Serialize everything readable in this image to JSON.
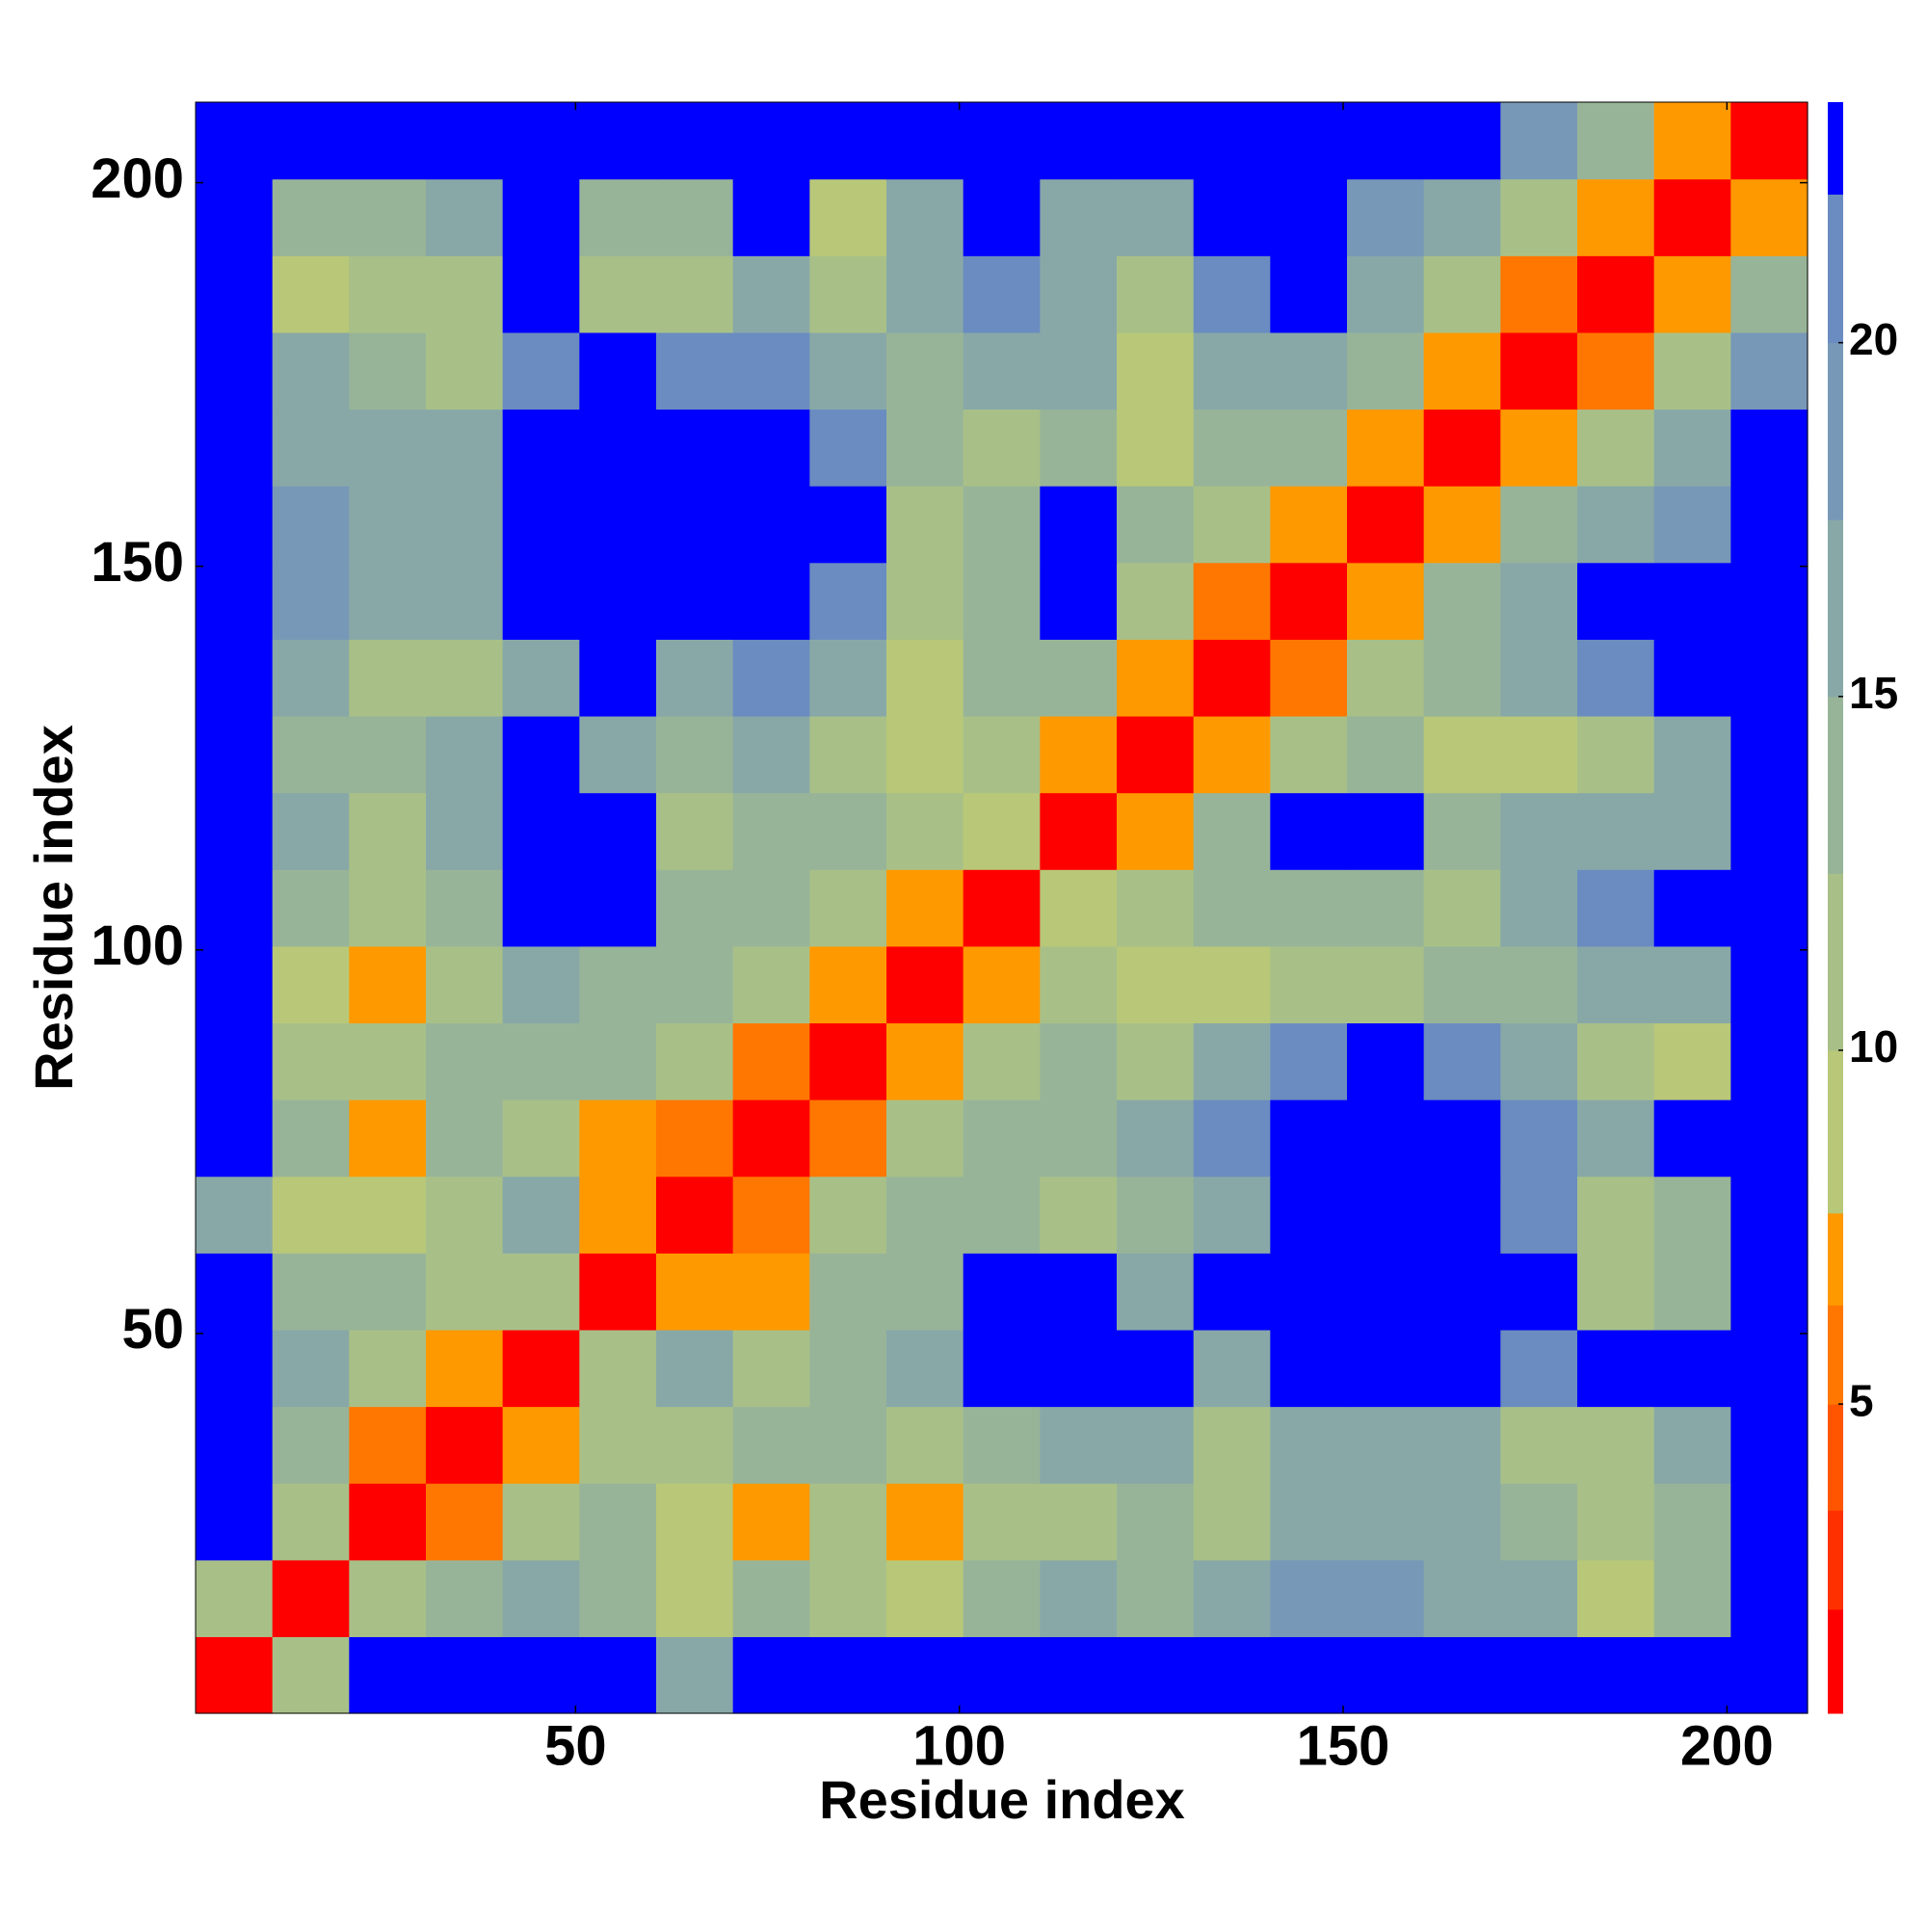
{
  "chart_data": {
    "type": "heatmap",
    "x_label": "Residue index",
    "y_label": "Residue index",
    "xlim": [
      0.5,
      210.5
    ],
    "ylim": [
      0.5,
      210.5
    ],
    "xticks": [
      50,
      100,
      150,
      200
    ],
    "yticks": [
      50,
      100,
      150,
      200
    ],
    "xbins": [
      0.5,
      10.5,
      20.5,
      30.5,
      40.5,
      50.5,
      60.5,
      70.5,
      80.5,
      90.5,
      100.5,
      110.5,
      120.5,
      130.5,
      140.5,
      150.5,
      160.5,
      170.5,
      180.5,
      190.5,
      200.5,
      210.5
    ],
    "ybins": [
      0.5,
      10.5,
      20.5,
      30.5,
      40.5,
      50.5,
      60.5,
      70.5,
      80.5,
      90.5,
      100.5,
      110.5,
      120.5,
      130.5,
      140.5,
      150.5,
      160.5,
      170.5,
      180.5,
      190.5,
      200.5,
      210.5
    ],
    "z": [
      [
        2,
        12,
        23,
        23,
        23,
        23,
        15,
        23,
        23,
        23,
        23,
        23,
        23,
        23,
        23,
        23,
        23,
        23,
        23,
        23,
        23
      ],
      [
        12,
        2,
        10,
        14,
        15,
        14,
        8,
        14,
        12,
        9,
        14,
        15,
        14,
        15,
        18,
        18,
        16,
        15,
        8,
        14,
        23
      ],
      [
        23,
        10,
        2,
        6,
        12,
        13,
        8,
        7,
        11,
        7,
        10,
        12,
        13,
        12,
        16,
        16,
        15,
        14,
        11,
        14,
        23
      ],
      [
        23,
        14,
        6,
        2,
        7,
        10,
        12,
        14,
        14,
        12,
        14,
        16,
        16,
        10,
        16,
        17,
        15,
        10,
        12,
        17,
        23
      ],
      [
        23,
        15,
        12,
        7,
        2,
        10,
        16,
        12,
        13,
        15,
        23,
        23,
        23,
        17,
        23,
        23,
        23,
        20,
        23,
        23,
        23
      ],
      [
        23,
        14,
        13,
        10,
        10,
        2,
        7,
        7,
        13,
        14,
        23,
        23,
        16,
        23,
        23,
        23,
        23,
        23,
        12,
        14,
        23
      ],
      [
        15,
        8,
        8,
        12,
        16,
        7,
        2,
        5,
        12,
        14,
        14,
        12,
        13,
        16,
        23,
        23,
        23,
        20,
        10,
        14,
        23
      ],
      [
        23,
        14,
        7,
        14,
        12,
        7,
        5,
        2,
        6,
        12,
        13,
        14,
        15,
        20,
        23,
        23,
        23,
        20,
        16,
        23,
        23
      ],
      [
        23,
        12,
        11,
        14,
        13,
        13,
        12,
        6,
        2,
        7,
        12,
        13,
        11,
        16,
        20,
        23,
        20,
        15,
        10,
        8,
        23
      ],
      [
        23,
        9,
        7,
        12,
        15,
        14,
        14,
        12,
        7,
        2,
        7,
        11,
        8,
        9,
        11,
        12,
        14,
        13,
        15,
        16,
        23
      ],
      [
        23,
        14,
        10,
        14,
        23,
        23,
        14,
        13,
        12,
        7,
        2,
        8,
        12,
        14,
        13,
        14,
        10,
        16,
        20,
        23,
        23
      ],
      [
        23,
        15,
        12,
        16,
        23,
        23,
        12,
        14,
        13,
        11,
        8,
        2,
        7,
        13,
        23,
        23,
        14,
        15,
        16,
        15,
        23
      ],
      [
        23,
        14,
        13,
        16,
        23,
        16,
        13,
        15,
        11,
        8,
        12,
        7,
        2,
        7,
        12,
        14,
        9,
        8,
        12,
        16,
        23
      ],
      [
        23,
        15,
        12,
        10,
        17,
        23,
        16,
        20,
        16,
        9,
        14,
        13,
        7,
        2,
        6,
        12,
        14,
        15,
        20,
        23,
        23
      ],
      [
        23,
        18,
        16,
        16,
        23,
        23,
        23,
        23,
        20,
        11,
        13,
        23,
        12,
        6,
        2,
        7,
        14,
        16,
        23,
        23,
        23
      ],
      [
        23,
        18,
        16,
        17,
        23,
        23,
        23,
        23,
        23,
        12,
        14,
        23,
        14,
        12,
        7,
        2,
        7,
        13,
        16,
        18,
        23
      ],
      [
        23,
        16,
        15,
        15,
        23,
        23,
        23,
        23,
        20,
        14,
        10,
        14,
        9,
        14,
        14,
        7,
        2,
        7,
        11,
        16,
        23
      ],
      [
        23,
        15,
        14,
        10,
        20,
        23,
        20,
        20,
        15,
        13,
        16,
        15,
        8,
        15,
        16,
        13,
        7,
        2,
        6,
        12,
        18
      ],
      [
        23,
        8,
        11,
        12,
        23,
        12,
        10,
        16,
        10,
        15,
        20,
        16,
        12,
        20,
        23,
        16,
        11,
        6,
        2,
        7,
        14
      ],
      [
        23,
        14,
        14,
        17,
        23,
        14,
        14,
        23,
        8,
        16,
        23,
        15,
        16,
        23,
        23,
        18,
        16,
        12,
        7,
        2,
        7
      ],
      [
        23,
        23,
        23,
        23,
        23,
        23,
        23,
        23,
        23,
        23,
        23,
        23,
        23,
        23,
        23,
        23,
        23,
        18,
        14,
        7,
        2
      ]
    ],
    "colorbar": {
      "lim": [
        0.63,
        23.4
      ],
      "levels": [
        0.63,
        2.1,
        3.5,
        5,
        6.4,
        7.7,
        10,
        12.5,
        15,
        17.5,
        20,
        22.1,
        23.4
      ],
      "colors": [
        "#ff0000",
        "#ff3000",
        "#ff5500",
        "#ff7700",
        "#ff9900",
        "#b8c878",
        "#a8c088",
        "#98b498",
        "#88a8a8",
        "#7898b8",
        "#6a8cc0",
        "#0000ff"
      ],
      "ticks": [
        5,
        10,
        15,
        20
      ]
    }
  }
}
